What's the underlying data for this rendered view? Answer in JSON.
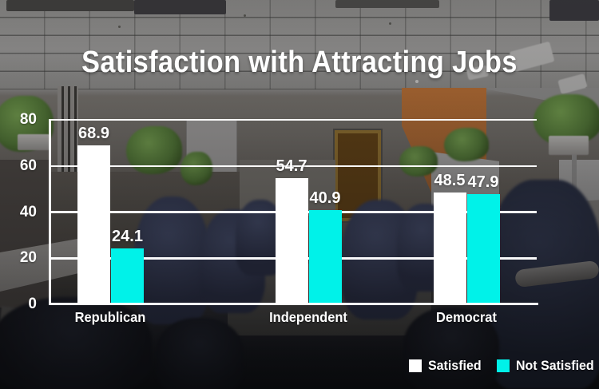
{
  "page": {
    "title": "Satisfaction with Attracting Jobs"
  },
  "chart_data": {
    "type": "bar",
    "title": "Satisfaction with Attracting Jobs",
    "categories": [
      "Republican",
      "Independent",
      "Democrat"
    ],
    "series": [
      {
        "name": "Satisfied",
        "color": "#ffffff",
        "values": [
          68.9,
          54.7,
          48.5
        ]
      },
      {
        "name": "Not Satisfied",
        "color": "#00f2e9",
        "values": [
          24.1,
          40.9,
          47.9
        ]
      }
    ],
    "ylim": [
      0,
      80
    ],
    "yticks": [
      0,
      20,
      40,
      60,
      80
    ],
    "grid": true,
    "value_labels": true,
    "legend_position": "bottom-right",
    "background": "darkened office cubicle photo"
  },
  "colors": {
    "satisfied_bar": "#ffffff",
    "not_satisfied_bar": "#00f2e9",
    "text": "#ffffff",
    "gridline": "#ffffff"
  }
}
